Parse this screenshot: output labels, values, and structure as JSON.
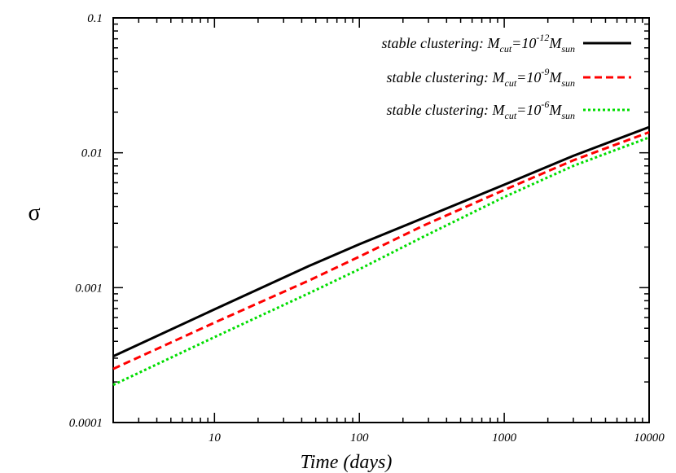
{
  "chart_data": {
    "type": "line",
    "xlabel": "Time (days)",
    "ylabel": "σ",
    "x_scale": "log",
    "y_scale": "log",
    "xlim": [
      2,
      10000
    ],
    "ylim": [
      0.0001,
      0.1
    ],
    "x_ticks": [
      {
        "value": 10,
        "label": "10"
      },
      {
        "value": 100,
        "label": "100"
      },
      {
        "value": 1000,
        "label": "1000"
      },
      {
        "value": 10000,
        "label": "10000"
      }
    ],
    "y_ticks": [
      {
        "value": 0.0001,
        "label": "0.0001"
      },
      {
        "value": 0.001,
        "label": "0.001"
      },
      {
        "value": 0.01,
        "label": "0.01"
      },
      {
        "value": 0.1,
        "label": "0.1"
      }
    ],
    "grid": false,
    "legend_position": "top-right",
    "series": [
      {
        "name": "stable clustering: M_cut=10^-12 M_sun",
        "legend": {
          "prefix": "stable clustering: M",
          "sub1": "cut",
          "mid": "=10",
          "sup": "-12",
          "mid2": "M",
          "sub2": "sun"
        },
        "color": "#000000",
        "dash": "solid",
        "x": [
          2,
          10,
          45,
          100,
          280,
          1000,
          3000,
          10000
        ],
        "y": [
          0.00031,
          0.00069,
          0.00145,
          0.0021,
          0.0033,
          0.0058,
          0.0095,
          0.0155
        ]
      },
      {
        "name": "stable clustering: M_cut=10^-9 M_sun",
        "legend": {
          "prefix": "stable clustering: M",
          "sub1": "cut",
          "mid": "=10",
          "sup": "-9",
          "mid2": "M",
          "sub2": "sun"
        },
        "color": "#ff0000",
        "dash": "dashed",
        "x": [
          2,
          10,
          45,
          100,
          280,
          1000,
          3000,
          10000
        ],
        "y": [
          0.00025,
          0.00055,
          0.00113,
          0.0017,
          0.0029,
          0.0053,
          0.0088,
          0.0142
        ]
      },
      {
        "name": "stable clustering: M_cut=10^-6 M_sun",
        "legend": {
          "prefix": "stable clustering: M",
          "sub1": "cut",
          "mid": "=10",
          "sup": "-6",
          "mid2": "M",
          "sub2": "sun"
        },
        "color": "#00dd00",
        "dash": "dotted",
        "x": [
          2,
          10,
          45,
          100,
          280,
          1000,
          3000,
          10000
        ],
        "y": [
          0.00019,
          0.00043,
          0.00091,
          0.00137,
          0.0024,
          0.0047,
          0.008,
          0.013
        ]
      }
    ]
  }
}
